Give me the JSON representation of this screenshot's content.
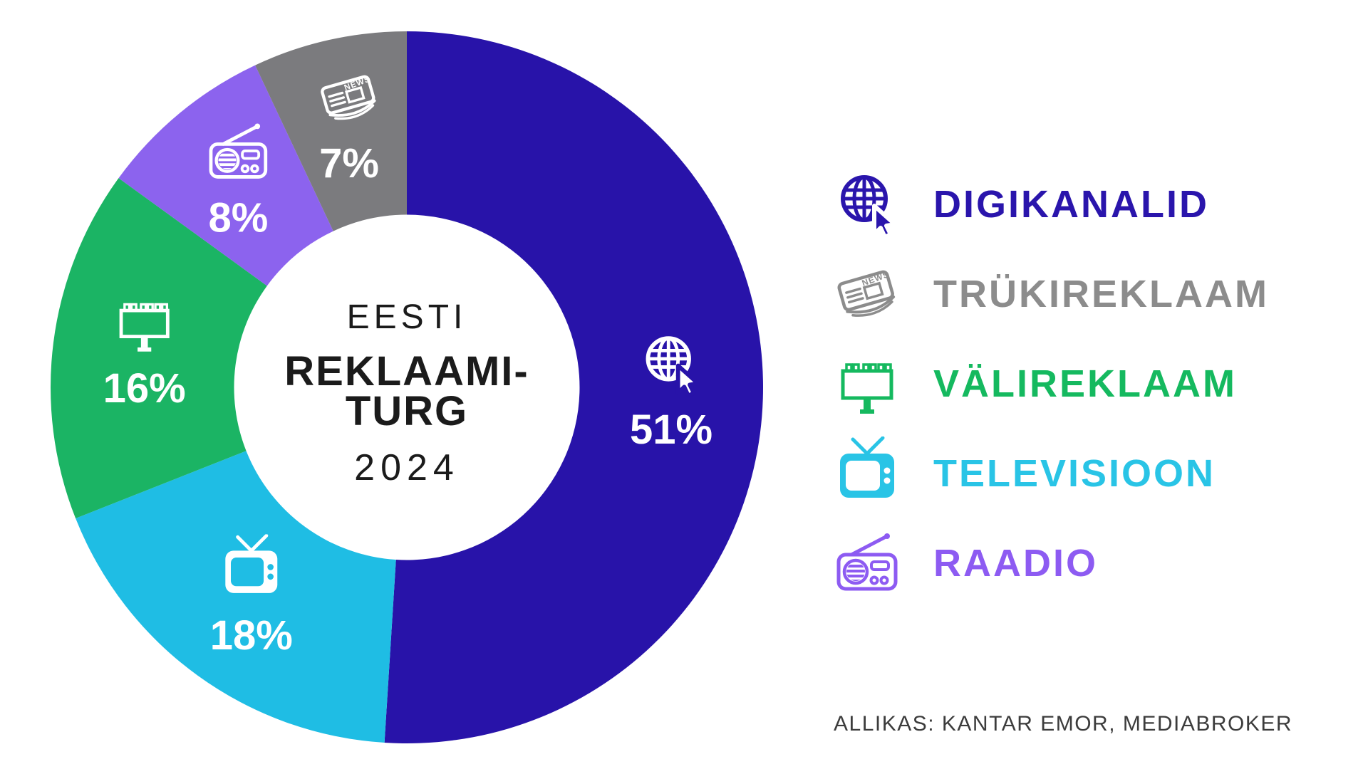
{
  "title": {
    "line1": "EESTI",
    "line2": "REKLAAMI-",
    "line3": "TURG",
    "line4": "2024"
  },
  "chart_data": {
    "type": "pie",
    "subtype": "donut",
    "title": "EESTI REKLAAMITURG 2024",
    "unit": "%",
    "direction": "clockwise",
    "start_angle_deg": 0,
    "inner_radius_ratio": 0.485,
    "slice_label_color": "#ffffff",
    "segments": [
      {
        "label": "Digikanalid",
        "value": 51,
        "display": "51%",
        "color": "#2813A9",
        "icon": "globe-cursor-icon"
      },
      {
        "label": "Televisioon",
        "value": 18,
        "display": "18%",
        "color": "#1FBDE4",
        "icon": "tv-icon"
      },
      {
        "label": "Välireklaam",
        "value": 16,
        "display": "16%",
        "color": "#1BB464",
        "icon": "billboard-icon"
      },
      {
        "label": "Raadio",
        "value": 8,
        "display": "8%",
        "color": "#8C63EE",
        "icon": "radio-icon"
      },
      {
        "label": "Trükireklaam",
        "value": 7,
        "display": "7%",
        "color": "#7B7B7E",
        "icon": "newspaper-icon"
      }
    ]
  },
  "legend": {
    "items": [
      {
        "label": "DIGIKANALID",
        "color": "#2A15AC",
        "icon": "globe-cursor-icon"
      },
      {
        "label": "TRÜKIREKLAAM",
        "color": "#8C8C8C",
        "icon": "newspaper-icon"
      },
      {
        "label": "VÄLIREKLAAM",
        "color": "#15B95F",
        "icon": "billboard-icon"
      },
      {
        "label": "TELEVISIOON",
        "color": "#29C4E6",
        "icon": "tv-icon"
      },
      {
        "label": "RAADIO",
        "color": "#8D5BF2",
        "icon": "radio-icon"
      }
    ]
  },
  "source": {
    "text": "ALLIKAS: KANTAR EMOR, MEDIABROKER"
  }
}
